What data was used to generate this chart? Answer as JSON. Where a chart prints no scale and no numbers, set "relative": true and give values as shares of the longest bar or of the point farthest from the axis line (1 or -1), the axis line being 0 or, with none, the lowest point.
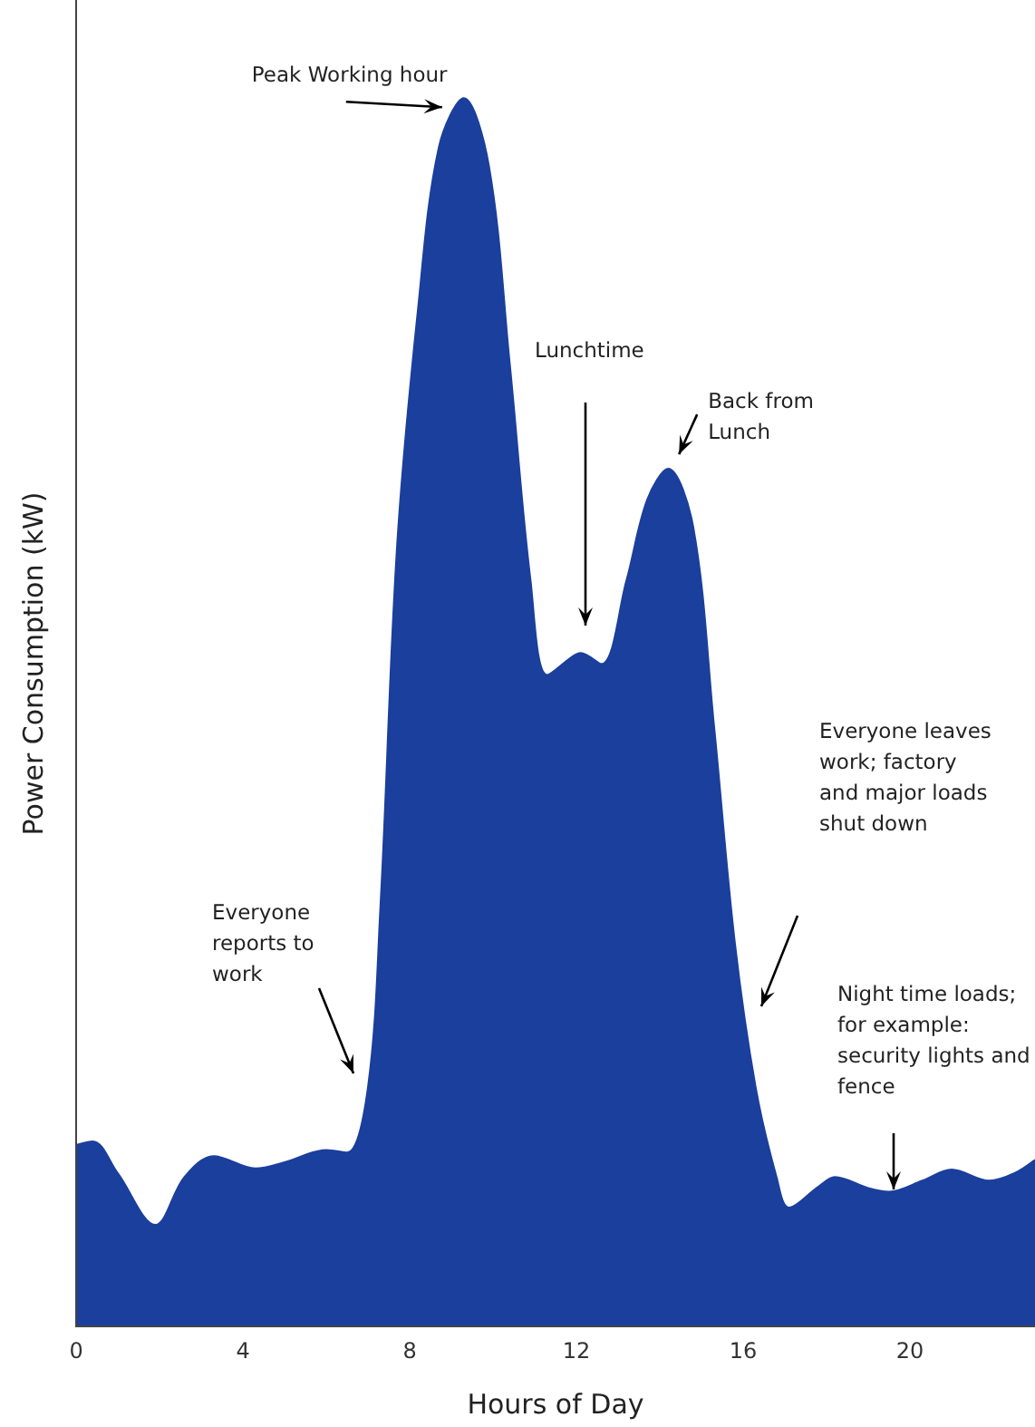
{
  "chart_data": {
    "type": "area",
    "xlabel": "Hours of Day",
    "ylabel": "Power Consumption (kW)",
    "relative": true,
    "xlim": [
      0,
      23
    ],
    "xticks": [
      0,
      4,
      8,
      12,
      16,
      20
    ],
    "grid": false,
    "marker": "none",
    "series": [
      {
        "color": "#1b3f9c",
        "x": [
          0,
          0.4,
          1.0,
          1.9,
          2.6,
          3.3,
          4.3,
          5.0,
          6.0,
          6.5,
          7.0,
          7.3,
          7.7,
          8.2,
          8.7,
          9.3,
          9.9,
          10.4,
          10.9,
          11.3,
          11.9,
          12.1,
          12.6,
          13.2,
          13.7,
          14.2,
          14.8,
          15.3,
          15.8,
          16.3,
          16.8,
          17.1,
          17.8,
          18.2,
          19.0,
          19.5,
          20.3,
          21.0,
          21.9,
          22.5,
          23
        ],
        "values": [
          0.147,
          0.15,
          0.124,
          0.082,
          0.121,
          0.138,
          0.128,
          0.133,
          0.143,
          0.141,
          0.194,
          0.342,
          0.636,
          0.828,
          0.96,
          1.0,
          0.945,
          0.784,
          0.607,
          0.53,
          0.545,
          0.548,
          0.539,
          0.607,
          0.673,
          0.698,
          0.651,
          0.489,
          0.312,
          0.194,
          0.121,
          0.096,
          0.113,
          0.121,
          0.112,
          0.109,
          0.118,
          0.127,
          0.118,
          0.124,
          0.135
        ]
      }
    ],
    "annotations": [
      {
        "text": "Peak Working hour",
        "x": 9.3,
        "y": 1.0
      },
      "Lunchtime",
      {
        "text": "Back from Lunch",
        "x": 14.2,
        "y": 0.698
      },
      "Everyone reports to work",
      "Everyone leaves work; factory and major loads shut down",
      "Night time loads; for example: security lights and fence"
    ]
  }
}
